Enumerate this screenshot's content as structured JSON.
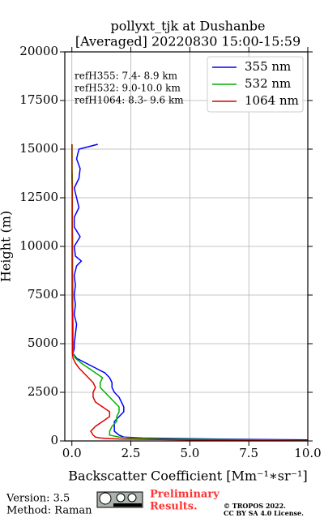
{
  "chart_data": {
    "type": "line",
    "title": "pollyxt_tjk at Dushanbe",
    "subtitle": "[Averaged] 20220830 15:00-15:59",
    "x_label": "Backscatter Coefficient [Mm⁻¹∗sr⁻¹]",
    "y_label": "Height (m)",
    "annotations": [
      "refH355:  7.4- 8.9 km",
      "refH532:  9.0-10.0 km",
      "refH1064:  8.3- 9.6 km"
    ],
    "heights": [
      0,
      50,
      100,
      150,
      200,
      300,
      500,
      750,
      1000,
      1250,
      1500,
      1750,
      2000,
      2250,
      2500,
      2750,
      3000,
      3250,
      3500,
      3750,
      4000,
      4250,
      4500,
      4750,
      5000,
      5500,
      6000,
      6500,
      7000,
      7500,
      8000,
      8500,
      9000,
      9250,
      9500,
      10000,
      10500,
      11000,
      11500,
      12000,
      12500,
      13000,
      13500,
      14000,
      14500,
      15000,
      15250
    ],
    "series": [
      {
        "name": "355 nm",
        "color": "#0000ff",
        "values": [
          10,
          10,
          6,
          3,
          2.2,
          2.0,
          1.8,
          1.8,
          1.8,
          2.0,
          2.2,
          2.2,
          2.1,
          2.0,
          1.8,
          1.7,
          1.7,
          1.6,
          1.4,
          1.0,
          0.6,
          0.2,
          0.05,
          0.1,
          0.1,
          0.15,
          0.2,
          0.1,
          0.15,
          0.1,
          0.15,
          0.1,
          0.2,
          0.4,
          0.15,
          0.1,
          0.35,
          0.1,
          0.1,
          0.3,
          0.2,
          0.1,
          0.3,
          0.35,
          0.2,
          0.3,
          1.1
        ]
      },
      {
        "name": "532 nm",
        "color": "#00b000",
        "values": [
          10,
          8,
          4,
          2.5,
          2.0,
          1.6,
          1.6,
          1.7,
          1.9,
          1.9,
          2.0,
          2.0,
          1.8,
          1.6,
          1.4,
          1.2,
          1.2,
          1.3,
          1.0,
          0.7,
          0.4,
          0.15,
          0.05,
          0.05,
          0.05,
          0.05,
          0.05,
          0.04,
          0.04,
          0.04,
          0.04,
          0.03,
          0.03,
          0.03,
          0.03,
          0.03,
          0.03,
          0.02,
          0.02,
          0.02,
          0.02,
          0.02,
          0.02,
          0.01,
          0.01,
          0.01,
          0.01
        ]
      },
      {
        "name": "1064 nm",
        "color": "#e00000",
        "values": [
          10,
          5,
          2.0,
          1.2,
          1.0,
          0.9,
          0.8,
          1.0,
          1.3,
          1.6,
          1.6,
          1.3,
          1.0,
          0.9,
          0.9,
          1.0,
          0.9,
          0.7,
          0.5,
          0.3,
          0.15,
          0.05,
          0.02,
          0.02,
          0.02,
          0.02,
          0.02,
          0.02,
          0.01,
          0.01,
          0.01,
          0.01,
          0.01,
          0.01,
          0.01,
          0.01,
          0.01,
          0.01,
          0.01,
          0.01,
          0.01,
          0.01,
          0,
          0,
          0,
          0,
          0
        ]
      }
    ],
    "xlim": [
      -0.3,
      10
    ],
    "xticks": [
      {
        "value": 0,
        "label": "0.0"
      },
      2.5,
      {
        "value": 5,
        "label": "5.0"
      },
      7.5,
      {
        "value": 10,
        "label": "10.0"
      }
    ],
    "ylim": [
      0,
      20000
    ],
    "yticks": [
      0,
      2500,
      5000,
      7500,
      10000,
      12500,
      15000,
      17500,
      20000
    ],
    "grid": true,
    "legend": "upper right"
  },
  "footer": {
    "version": "Version: 3.5",
    "method": "Method: Raman",
    "preliminary": [
      "Preliminary",
      "Results."
    ],
    "copyright": [
      "© TROPOS 2022.",
      "CC BY SA 4.0 License."
    ]
  }
}
